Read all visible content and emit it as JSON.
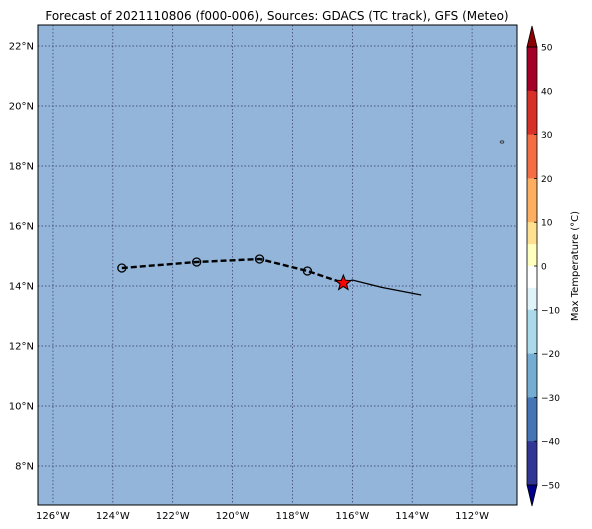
{
  "title": "Forecast of 2021110806 (f000-006), Sources: GDACS (TC track), GFS (Meteo)",
  "map": {
    "lon_range": [
      -126.5,
      -110.5
    ],
    "lat_range": [
      6.7,
      22.7
    ],
    "ocean_color": "#92b5d9",
    "grid_color": "#333366",
    "lon_ticks": [
      -126,
      -124,
      -122,
      -120,
      -118,
      -116,
      -114,
      -112
    ],
    "lat_ticks": [
      8,
      10,
      12,
      14,
      16,
      18,
      20,
      22
    ],
    "lon_labels": [
      "126°W",
      "124°W",
      "122°W",
      "120°W",
      "118°W",
      "116°W",
      "114°W",
      "112°W"
    ],
    "lat_labels": [
      "8°N",
      "10°N",
      "12°N",
      "14°N",
      "16°N",
      "18°N",
      "20°N",
      "22°N"
    ],
    "grid": true
  },
  "forecast_track": {
    "style": "dashed",
    "points": [
      {
        "lon": -123.7,
        "lat": 14.6
      },
      {
        "lon": -121.2,
        "lat": 14.8
      },
      {
        "lon": -119.1,
        "lat": 14.9
      },
      {
        "lon": -117.5,
        "lat": 14.5
      },
      {
        "lon": -116.3,
        "lat": 14.1
      }
    ]
  },
  "past_track": {
    "style": "solid",
    "points": [
      {
        "lon": -116.3,
        "lat": 14.1
      },
      {
        "lon": -116.0,
        "lat": 14.2
      },
      {
        "lon": -115.0,
        "lat": 13.95
      },
      {
        "lon": -113.7,
        "lat": 13.7
      }
    ]
  },
  "current_position": {
    "lon": -116.3,
    "lat": 14.1,
    "marker": "star",
    "color": "#ff0000"
  },
  "island": {
    "lon": -111.0,
    "lat": 18.8
  },
  "colorbar": {
    "label": "Max Temperature (°C)",
    "tick_values": [
      50,
      40,
      30,
      20,
      10,
      0,
      -10,
      -20,
      -30,
      -40,
      -50
    ],
    "tick_labels": [
      "50",
      "40",
      "30",
      "20",
      "10",
      "0",
      "−10",
      "−20",
      "−30",
      "−40",
      "−50"
    ],
    "bands": [
      {
        "from": 50,
        "to": 45,
        "color": "#a50026"
      },
      {
        "from": 45,
        "to": 40,
        "color": "#a50026"
      },
      {
        "from": 40,
        "to": 35,
        "color": "#d73027"
      },
      {
        "from": 35,
        "to": 30,
        "color": "#d73027"
      },
      {
        "from": 30,
        "to": 25,
        "color": "#f46d43"
      },
      {
        "from": 25,
        "to": 20,
        "color": "#f46d43"
      },
      {
        "from": 20,
        "to": 15,
        "color": "#fdae61"
      },
      {
        "from": 15,
        "to": 10,
        "color": "#fdae61"
      },
      {
        "from": 10,
        "to": 5,
        "color": "#fee090"
      },
      {
        "from": 5,
        "to": 0,
        "color": "#ffffbf"
      },
      {
        "from": 0,
        "to": -5,
        "color": "#ffffff"
      },
      {
        "from": -5,
        "to": -10,
        "color": "#e0f3f8"
      },
      {
        "from": -10,
        "to": -15,
        "color": "#abd9e9"
      },
      {
        "from": -15,
        "to": -20,
        "color": "#abd9e9"
      },
      {
        "from": -20,
        "to": -25,
        "color": "#74add1"
      },
      {
        "from": -25,
        "to": -30,
        "color": "#74add1"
      },
      {
        "from": -30,
        "to": -35,
        "color": "#4575b4"
      },
      {
        "from": -35,
        "to": -40,
        "color": "#4575b4"
      },
      {
        "from": -40,
        "to": -45,
        "color": "#313695"
      },
      {
        "from": -45,
        "to": -50,
        "color": "#313695"
      }
    ],
    "extend_top_color": "#8b0000",
    "extend_bottom_color": "#00008b"
  }
}
